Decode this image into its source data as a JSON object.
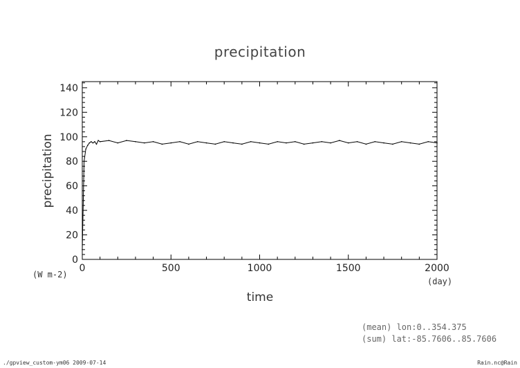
{
  "chart_data": {
    "type": "line",
    "title": "precipitation",
    "xlabel": "time",
    "ylabel": "precipitation",
    "x_unit": "(day)",
    "y_unit": "(W m-2)",
    "xlim": [
      0,
      2000
    ],
    "ylim": [
      0,
      145
    ],
    "x_ticks": [
      0,
      500,
      1000,
      1500,
      2000
    ],
    "y_ticks": [
      0,
      20,
      40,
      60,
      80,
      100,
      120,
      140
    ],
    "grid": false,
    "legend": "none",
    "line_color": "#000000",
    "series": [
      {
        "x": [
          0,
          10,
          20,
          30,
          40,
          50,
          60,
          70,
          80,
          90,
          100,
          150,
          200,
          250,
          300,
          350,
          400,
          450,
          500,
          550,
          600,
          650,
          700,
          750,
          800,
          850,
          900,
          950,
          1000,
          1050,
          1100,
          1150,
          1200,
          1250,
          1300,
          1350,
          1400,
          1450,
          1500,
          1550,
          1600,
          1650,
          1700,
          1750,
          1800,
          1850,
          1900,
          1950,
          2000
        ],
        "values": [
          8,
          80,
          90,
          93,
          95,
          96,
          95,
          96,
          94,
          97,
          96,
          97,
          95,
          97,
          96,
          95,
          96,
          94,
          95,
          96,
          94,
          96,
          95,
          94,
          96,
          95,
          94,
          96,
          95,
          94,
          96,
          95,
          96,
          94,
          95,
          96,
          95,
          97,
          95,
          96,
          94,
          96,
          95,
          94,
          96,
          95,
          94,
          96,
          95
        ]
      }
    ],
    "annotations": [
      "(mean) lon:0..354.375",
      "(sum) lat:-85.7606..85.7606"
    ]
  },
  "footer": {
    "left": "./gpview_custom-ym06  2009-07-14",
    "right": "Rain.nc@Rain"
  }
}
